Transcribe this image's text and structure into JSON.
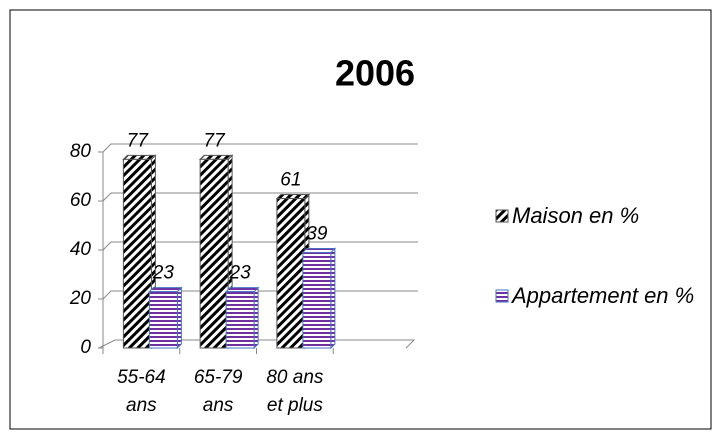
{
  "chart_data": {
    "type": "bar",
    "title": "2006",
    "categories": [
      "55-64 ans",
      "65-79 ans",
      "80 ans et plus"
    ],
    "series": [
      {
        "name": "Maison en %",
        "color": "#000000",
        "values": [
          77,
          77,
          61
        ]
      },
      {
        "name": "Appartement en %",
        "color": "#7030a0",
        "values": [
          23,
          23,
          39
        ]
      }
    ],
    "ylim": [
      0,
      80
    ],
    "yticks": [
      0,
      20,
      40,
      60,
      80
    ],
    "grid": true,
    "legend": "right"
  }
}
